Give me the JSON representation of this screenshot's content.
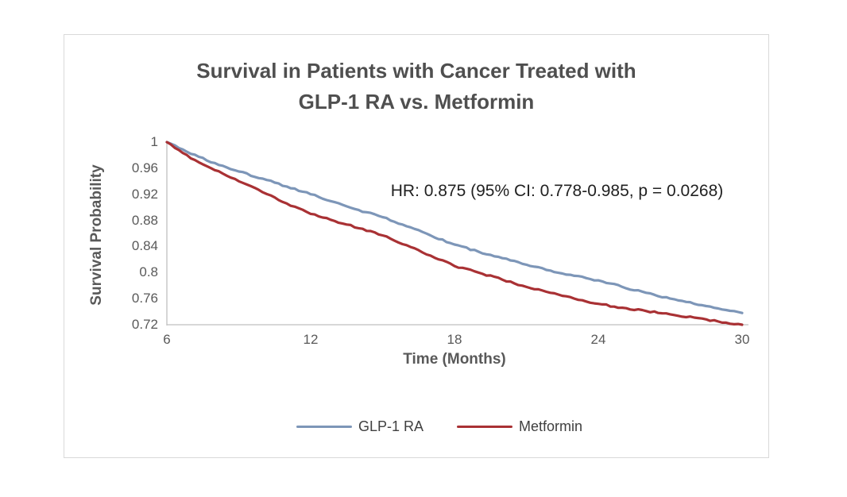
{
  "colors": {
    "glp1": "#7d96b8",
    "metformin": "#a93134",
    "axis": "#bfbfbf",
    "text_dark": "#4f4f4f",
    "tick_text": "#595959"
  },
  "chart_data": {
    "type": "line",
    "title": "Survival in Patients with Cancer Treated with GLP-1 RA vs. Metformin",
    "title_lines": [
      "Survival in Patients with Cancer Treated with",
      "GLP-1 RA vs. Metformin"
    ],
    "xlabel": "Time (Months)",
    "ylabel": "Survival Probability",
    "annotation": "HR: 0.875 (95% CI: 0.778-0.985, p = 0.0268)",
    "xlim": [
      6,
      30
    ],
    "ylim": [
      0.72,
      1.0
    ],
    "x_ticks": [
      6,
      12,
      18,
      24,
      30
    ],
    "y_ticks": [
      1,
      0.96,
      0.92,
      0.88,
      0.84,
      0.8,
      0.76,
      0.72
    ],
    "y_tick_labels": [
      "1",
      "0.96",
      "0.92",
      "0.88",
      "0.84",
      "0.8",
      "0.76",
      "0.72"
    ],
    "grid": false,
    "legend_position": "bottom",
    "x": [
      6,
      7,
      8,
      9,
      10,
      11,
      12,
      13,
      14,
      15,
      16,
      17,
      18,
      19,
      20,
      21,
      22,
      23,
      24,
      25,
      26,
      27,
      28,
      29,
      30
    ],
    "series": [
      {
        "name": "GLP-1 RA",
        "color": "#7d96b8",
        "values": [
          1.0,
          0.982,
          0.968,
          0.955,
          0.944,
          0.932,
          0.92,
          0.908,
          0.896,
          0.885,
          0.871,
          0.857,
          0.843,
          0.832,
          0.822,
          0.812,
          0.803,
          0.795,
          0.788,
          0.778,
          0.769,
          0.76,
          0.752,
          0.745,
          0.738
        ]
      },
      {
        "name": "Metformin",
        "color": "#a93134",
        "values": [
          1.0,
          0.975,
          0.957,
          0.94,
          0.923,
          0.906,
          0.89,
          0.879,
          0.868,
          0.857,
          0.842,
          0.826,
          0.81,
          0.8,
          0.789,
          0.778,
          0.769,
          0.76,
          0.752,
          0.746,
          0.741,
          0.736,
          0.731,
          0.725,
          0.72
        ]
      }
    ]
  }
}
